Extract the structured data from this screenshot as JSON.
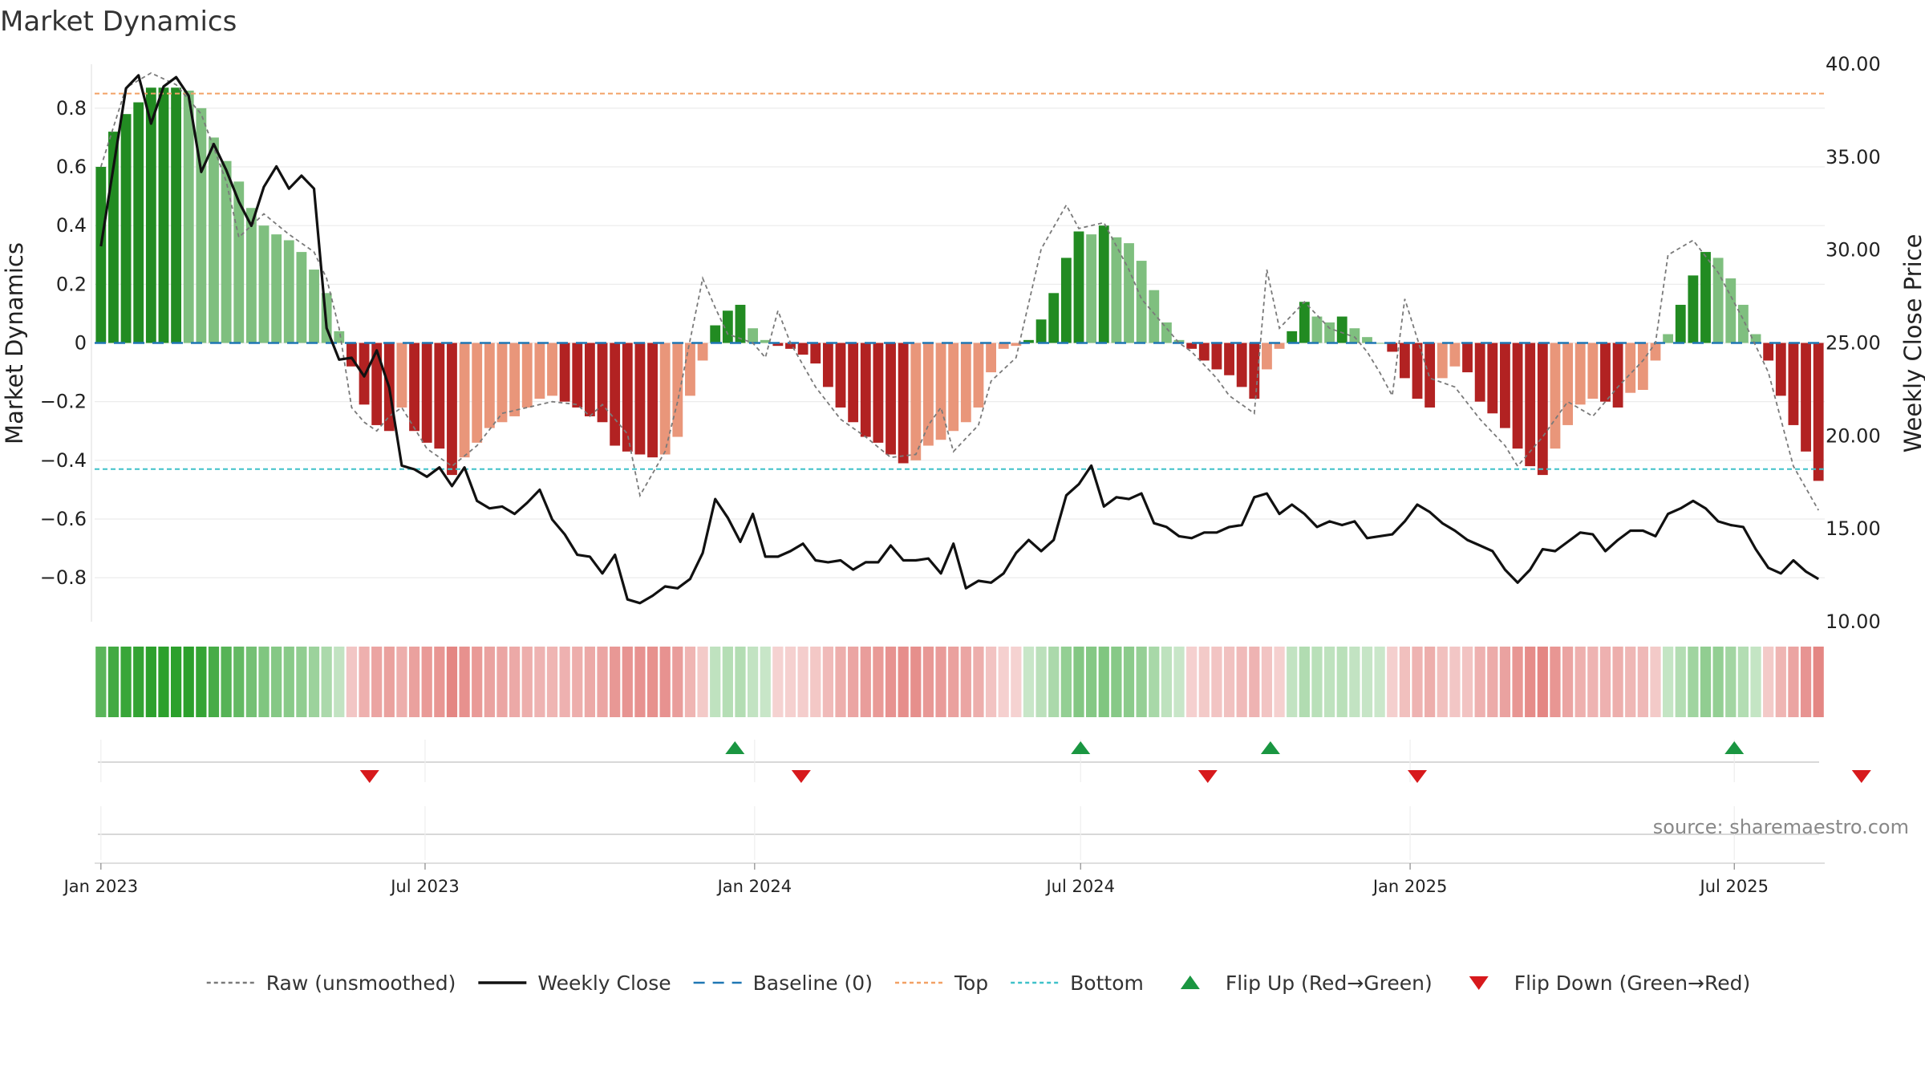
{
  "chart_data": {
    "type": "bar",
    "title": "Market Dynamics",
    "ylabel": "Market Dynamics",
    "y2label": "Weekly Close Price",
    "ylim": [
      -0.95,
      0.95
    ],
    "y2lim": [
      10,
      40
    ],
    "yticks": [
      0.8,
      0.6,
      0.4,
      0.2,
      0,
      -0.2,
      -0.4,
      -0.6,
      -0.8
    ],
    "ytick_labels": [
      "0.8",
      "0.6",
      "0.4",
      "0.2",
      "0",
      "−0.2",
      "−0.4",
      "−0.6",
      "−0.8"
    ],
    "y2ticks": [
      40,
      35,
      30,
      25,
      20,
      15,
      10
    ],
    "y2tick_labels": [
      "40.00",
      "35.00",
      "30.00",
      "25.00",
      "20.00",
      "15.00",
      "10.00"
    ],
    "top_level": 0.85,
    "bottom_level": -0.43,
    "x_start": "2023-01-01",
    "x_ticks": [
      {
        "date": "2023-01-01",
        "label": "Jan 2023"
      },
      {
        "date": "2023-07-01",
        "label": "Jul 2023"
      },
      {
        "date": "2024-01-01",
        "label": "Jan 2024"
      },
      {
        "date": "2024-07-01",
        "label": "Jul 2024"
      },
      {
        "date": "2025-01-01",
        "label": "Jan 2025"
      },
      {
        "date": "2025-07-01",
        "label": "Jul 2025"
      }
    ],
    "strength_anchors": [
      [
        0,
        0.6
      ],
      [
        1,
        0.72
      ],
      [
        2,
        0.78
      ],
      [
        3,
        0.82
      ],
      [
        4,
        0.87
      ],
      [
        5,
        0.87
      ],
      [
        6,
        0.87
      ],
      [
        7,
        0.86
      ],
      [
        8,
        0.8
      ],
      [
        9,
        0.7
      ],
      [
        10,
        0.62
      ],
      [
        11,
        0.55
      ],
      [
        12,
        0.46
      ],
      [
        13,
        0.4
      ],
      [
        14,
        0.37
      ],
      [
        15,
        0.35
      ],
      [
        16,
        0.31
      ],
      [
        17,
        0.25
      ],
      [
        18,
        0.17
      ],
      [
        19,
        0.04
      ],
      [
        20,
        -0.08
      ],
      [
        21,
        -0.21
      ],
      [
        22,
        -0.28
      ],
      [
        23,
        -0.3
      ],
      [
        24,
        -0.22
      ],
      [
        25,
        -0.3
      ],
      [
        26,
        -0.34
      ],
      [
        27,
        -0.36
      ],
      [
        28,
        -0.45
      ],
      [
        29,
        -0.39
      ],
      [
        30,
        -0.34
      ],
      [
        31,
        -0.29
      ],
      [
        32,
        -0.27
      ],
      [
        33,
        -0.25
      ],
      [
        34,
        -0.22
      ],
      [
        35,
        -0.19
      ],
      [
        36,
        -0.18
      ],
      [
        37,
        -0.2
      ],
      [
        38,
        -0.22
      ],
      [
        39,
        -0.25
      ],
      [
        40,
        -0.27
      ],
      [
        41,
        -0.35
      ],
      [
        42,
        -0.37
      ],
      [
        43,
        -0.38
      ],
      [
        44,
        -0.39
      ],
      [
        45,
        -0.38
      ],
      [
        46,
        -0.32
      ],
      [
        47,
        -0.18
      ],
      [
        48,
        -0.06
      ],
      [
        49,
        0.06
      ],
      [
        50,
        0.11
      ],
      [
        51,
        0.13
      ],
      [
        52,
        0.05
      ],
      [
        53,
        0.01
      ],
      [
        54,
        -0.01
      ],
      [
        55,
        -0.02
      ],
      [
        56,
        -0.04
      ],
      [
        57,
        -0.07
      ],
      [
        58,
        -0.15
      ],
      [
        59,
        -0.22
      ],
      [
        60,
        -0.27
      ],
      [
        61,
        -0.32
      ],
      [
        62,
        -0.34
      ],
      [
        63,
        -0.38
      ],
      [
        64,
        -0.41
      ],
      [
        65,
        -0.4
      ],
      [
        66,
        -0.35
      ],
      [
        67,
        -0.33
      ],
      [
        68,
        -0.3
      ],
      [
        69,
        -0.27
      ],
      [
        70,
        -0.22
      ],
      [
        71,
        -0.1
      ],
      [
        72,
        -0.02
      ],
      [
        73,
        -0.01
      ],
      [
        74,
        0.01
      ],
      [
        75,
        0.08
      ],
      [
        76,
        0.17
      ],
      [
        77,
        0.29
      ],
      [
        78,
        0.38
      ],
      [
        79,
        0.37
      ],
      [
        80,
        0.4
      ],
      [
        81,
        0.36
      ],
      [
        82,
        0.34
      ],
      [
        83,
        0.28
      ],
      [
        84,
        0.18
      ],
      [
        85,
        0.07
      ],
      [
        86,
        0.01
      ],
      [
        87,
        -0.02
      ],
      [
        88,
        -0.06
      ],
      [
        89,
        -0.09
      ],
      [
        90,
        -0.11
      ],
      [
        91,
        -0.15
      ],
      [
        92,
        -0.19
      ],
      [
        93,
        -0.09
      ],
      [
        94,
        -0.02
      ],
      [
        95,
        0.04
      ],
      [
        96,
        0.14
      ],
      [
        97,
        0.09
      ],
      [
        98,
        0.07
      ],
      [
        99,
        0.09
      ],
      [
        100,
        0.05
      ],
      [
        101,
        0.02
      ],
      [
        102,
        0.0
      ],
      [
        103,
        -0.03
      ],
      [
        104,
        -0.12
      ],
      [
        105,
        -0.19
      ],
      [
        106,
        -0.22
      ],
      [
        107,
        -0.12
      ],
      [
        108,
        -0.08
      ],
      [
        109,
        -0.1
      ],
      [
        110,
        -0.2
      ],
      [
        111,
        -0.24
      ],
      [
        112,
        -0.29
      ],
      [
        113,
        -0.36
      ],
      [
        114,
        -0.42
      ],
      [
        115,
        -0.45
      ],
      [
        116,
        -0.36
      ],
      [
        117,
        -0.28
      ],
      [
        118,
        -0.21
      ],
      [
        119,
        -0.19
      ],
      [
        120,
        -0.2
      ],
      [
        121,
        -0.22
      ],
      [
        122,
        -0.17
      ],
      [
        123,
        -0.16
      ],
      [
        124,
        -0.06
      ],
      [
        125,
        0.03
      ],
      [
        126,
        0.13
      ],
      [
        127,
        0.23
      ],
      [
        128,
        0.31
      ],
      [
        129,
        0.29
      ],
      [
        130,
        0.22
      ],
      [
        131,
        0.13
      ],
      [
        132,
        0.03
      ],
      [
        133,
        -0.06
      ],
      [
        134,
        -0.18
      ],
      [
        135,
        -0.28
      ],
      [
        136,
        -0.37
      ],
      [
        137,
        -0.47
      ]
    ],
    "raw_anchors": [
      [
        0,
        0.6
      ],
      [
        2,
        0.87
      ],
      [
        4,
        0.92
      ],
      [
        6,
        0.88
      ],
      [
        8,
        0.78
      ],
      [
        10,
        0.55
      ],
      [
        11,
        0.36
      ],
      [
        13,
        0.44
      ],
      [
        15,
        0.37
      ],
      [
        17,
        0.31
      ],
      [
        18,
        0.22
      ],
      [
        19,
        0.05
      ],
      [
        20,
        -0.22
      ],
      [
        21,
        -0.27
      ],
      [
        22,
        -0.3
      ],
      [
        23,
        -0.25
      ],
      [
        24,
        -0.22
      ],
      [
        25,
        -0.29
      ],
      [
        26,
        -0.36
      ],
      [
        28,
        -0.42
      ],
      [
        30,
        -0.35
      ],
      [
        32,
        -0.24
      ],
      [
        34,
        -0.22
      ],
      [
        36,
        -0.2
      ],
      [
        38,
        -0.21
      ],
      [
        39,
        -0.25
      ],
      [
        40,
        -0.21
      ],
      [
        42,
        -0.31
      ],
      [
        43,
        -0.52
      ],
      [
        45,
        -0.37
      ],
      [
        46,
        -0.2
      ],
      [
        48,
        0.22
      ],
      [
        49,
        0.12
      ],
      [
        50,
        0.03
      ],
      [
        52,
        0.0
      ],
      [
        53,
        -0.05
      ],
      [
        54,
        0.11
      ],
      [
        55,
        0.0
      ],
      [
        57,
        -0.15
      ],
      [
        59,
        -0.26
      ],
      [
        61,
        -0.32
      ],
      [
        63,
        -0.39
      ],
      [
        65,
        -0.38
      ],
      [
        66,
        -0.28
      ],
      [
        67,
        -0.22
      ],
      [
        68,
        -0.37
      ],
      [
        70,
        -0.28
      ],
      [
        71,
        -0.13
      ],
      [
        73,
        -0.05
      ],
      [
        75,
        0.32
      ],
      [
        77,
        0.47
      ],
      [
        78,
        0.39
      ],
      [
        80,
        0.41
      ],
      [
        82,
        0.25
      ],
      [
        83,
        0.15
      ],
      [
        84,
        0.1
      ],
      [
        86,
        0.0
      ],
      [
        87,
        -0.03
      ],
      [
        89,
        -0.12
      ],
      [
        90,
        -0.18
      ],
      [
        92,
        -0.24
      ],
      [
        93,
        0.25
      ],
      [
        94,
        0.05
      ],
      [
        96,
        0.14
      ],
      [
        98,
        0.05
      ],
      [
        100,
        0.02
      ],
      [
        101,
        -0.03
      ],
      [
        102,
        -0.1
      ],
      [
        103,
        -0.18
      ],
      [
        104,
        0.15
      ],
      [
        106,
        -0.12
      ],
      [
        108,
        -0.15
      ],
      [
        110,
        -0.26
      ],
      [
        112,
        -0.35
      ],
      [
        113,
        -0.42
      ],
      [
        115,
        -0.32
      ],
      [
        117,
        -0.2
      ],
      [
        119,
        -0.25
      ],
      [
        121,
        -0.15
      ],
      [
        123,
        -0.06
      ],
      [
        124,
        0.0
      ],
      [
        125,
        0.3
      ],
      [
        127,
        0.35
      ],
      [
        129,
        0.24
      ],
      [
        131,
        0.08
      ],
      [
        133,
        -0.1
      ],
      [
        135,
        -0.42
      ],
      [
        137,
        -0.57
      ]
    ],
    "close_anchors": [
      [
        0,
        30.2
      ],
      [
        2,
        38.7
      ],
      [
        3,
        39.4
      ],
      [
        4,
        36.8
      ],
      [
        5,
        38.8
      ],
      [
        6,
        39.3
      ],
      [
        7,
        38.3
      ],
      [
        8,
        34.2
      ],
      [
        9,
        35.7
      ],
      [
        10,
        34.3
      ],
      [
        11,
        32.6
      ],
      [
        12,
        31.3
      ],
      [
        13,
        33.4
      ],
      [
        14,
        34.5
      ],
      [
        15,
        33.3
      ],
      [
        16,
        34.0
      ],
      [
        17,
        33.3
      ],
      [
        18,
        25.8
      ],
      [
        19,
        24.1
      ],
      [
        20,
        24.2
      ],
      [
        21,
        23.2
      ],
      [
        22,
        24.6
      ],
      [
        23,
        22.6
      ],
      [
        24,
        18.4
      ],
      [
        25,
        18.2
      ],
      [
        26,
        17.8
      ],
      [
        27,
        18.3
      ],
      [
        28,
        17.3
      ],
      [
        29,
        18.3
      ],
      [
        30,
        16.5
      ],
      [
        31,
        16.1
      ],
      [
        32,
        16.2
      ],
      [
        33,
        15.8
      ],
      [
        34,
        16.4
      ],
      [
        35,
        17.1
      ],
      [
        36,
        15.5
      ],
      [
        37,
        14.7
      ],
      [
        38,
        13.6
      ],
      [
        39,
        13.5
      ],
      [
        40,
        12.6
      ],
      [
        41,
        13.6
      ],
      [
        42,
        11.2
      ],
      [
        43,
        11.0
      ],
      [
        44,
        11.4
      ],
      [
        45,
        11.9
      ],
      [
        46,
        11.8
      ],
      [
        47,
        12.3
      ],
      [
        48,
        13.7
      ],
      [
        49,
        16.6
      ],
      [
        50,
        15.6
      ],
      [
        51,
        14.3
      ],
      [
        52,
        15.8
      ],
      [
        53,
        13.5
      ],
      [
        54,
        13.5
      ],
      [
        55,
        13.8
      ],
      [
        56,
        14.2
      ],
      [
        57,
        13.3
      ],
      [
        58,
        13.2
      ],
      [
        59,
        13.3
      ],
      [
        60,
        12.8
      ],
      [
        61,
        13.2
      ],
      [
        62,
        13.2
      ],
      [
        63,
        14.1
      ],
      [
        64,
        13.3
      ],
      [
        65,
        13.3
      ],
      [
        66,
        13.4
      ],
      [
        67,
        12.6
      ],
      [
        68,
        14.2
      ],
      [
        69,
        11.8
      ],
      [
        70,
        12.2
      ],
      [
        71,
        12.1
      ],
      [
        72,
        12.6
      ],
      [
        73,
        13.7
      ],
      [
        74,
        14.4
      ],
      [
        75,
        13.8
      ],
      [
        76,
        14.4
      ],
      [
        77,
        16.8
      ],
      [
        78,
        17.4
      ],
      [
        79,
        18.4
      ],
      [
        80,
        16.2
      ],
      [
        81,
        16.7
      ],
      [
        82,
        16.6
      ],
      [
        83,
        16.9
      ],
      [
        84,
        15.3
      ],
      [
        85,
        15.1
      ],
      [
        86,
        14.6
      ],
      [
        87,
        14.5
      ],
      [
        88,
        14.8
      ],
      [
        89,
        14.8
      ],
      [
        90,
        15.1
      ],
      [
        91,
        15.2
      ],
      [
        92,
        16.7
      ],
      [
        93,
        16.9
      ],
      [
        94,
        15.8
      ],
      [
        95,
        16.3
      ],
      [
        96,
        15.8
      ],
      [
        97,
        15.1
      ],
      [
        98,
        15.4
      ],
      [
        99,
        15.2
      ],
      [
        100,
        15.4
      ],
      [
        101,
        14.5
      ],
      [
        102,
        14.6
      ],
      [
        103,
        14.7
      ],
      [
        104,
        15.4
      ],
      [
        105,
        16.3
      ],
      [
        106,
        15.9
      ],
      [
        107,
        15.3
      ],
      [
        108,
        14.9
      ],
      [
        109,
        14.4
      ],
      [
        110,
        14.1
      ],
      [
        111,
        13.8
      ],
      [
        112,
        12.8
      ],
      [
        113,
        12.1
      ],
      [
        114,
        12.8
      ],
      [
        115,
        13.9
      ],
      [
        116,
        13.8
      ],
      [
        117,
        14.3
      ],
      [
        118,
        14.8
      ],
      [
        119,
        14.7
      ],
      [
        120,
        13.8
      ],
      [
        121,
        14.4
      ],
      [
        122,
        14.9
      ],
      [
        123,
        14.9
      ],
      [
        124,
        14.6
      ],
      [
        125,
        15.8
      ],
      [
        126,
        16.1
      ],
      [
        127,
        16.5
      ],
      [
        128,
        16.1
      ],
      [
        129,
        15.4
      ],
      [
        130,
        15.2
      ],
      [
        131,
        15.1
      ],
      [
        132,
        13.9
      ],
      [
        133,
        12.9
      ],
      [
        134,
        12.6
      ],
      [
        135,
        13.3
      ],
      [
        136,
        12.7
      ],
      [
        137,
        12.3
      ]
    ],
    "regime_bands": [
      {
        "from": 0,
        "to": 19,
        "state": "bull-fading"
      },
      {
        "from": 20,
        "to": 48,
        "state": "bear"
      },
      {
        "from": 49,
        "to": 73,
        "state": "mixed-bear"
      },
      {
        "from": 74,
        "to": 86,
        "state": "bull"
      },
      {
        "from": 87,
        "to": 94,
        "state": "bear-light"
      },
      {
        "from": 95,
        "to": 101,
        "state": "bull-light"
      },
      {
        "from": 102,
        "to": 124,
        "state": "bear"
      },
      {
        "from": 125,
        "to": 131,
        "state": "bull"
      },
      {
        "from": 132,
        "to": 137,
        "state": "bear"
      }
    ],
    "flips_up": [
      {
        "date": "2023-12-21"
      },
      {
        "date": "2024-07-01"
      },
      {
        "date": "2024-10-15"
      },
      {
        "date": "2025-07-01"
      }
    ],
    "flips_down": [
      {
        "date": "2023-05-31"
      },
      {
        "date": "2024-01-27"
      },
      {
        "date": "2024-09-10"
      },
      {
        "date": "2025-01-05"
      },
      {
        "date": "2025-09-10"
      }
    ],
    "legend": [
      {
        "label": "Raw (unsmoothed)",
        "kind": "dotted",
        "color": "#7a7a7a"
      },
      {
        "label": "Weekly Close",
        "kind": "solid",
        "color": "#111111"
      },
      {
        "label": "Baseline (0)",
        "kind": "dashed",
        "color": "#1f77b4"
      },
      {
        "label": "Top",
        "kind": "dotted",
        "color": "#f2a165"
      },
      {
        "label": "Bottom",
        "kind": "dotted",
        "color": "#3fc1c9"
      },
      {
        "label": "Flip Up (Red→Green)",
        "kind": "triangle-up",
        "color": "#1a9641"
      },
      {
        "label": "Flip Down (Green→Red)",
        "kind": "triangle-down",
        "color": "#d7191c"
      }
    ],
    "source": "source: sharemaestro.com",
    "colors": {
      "strong_up": "#228B22",
      "weak_up": "#7fbf7f",
      "strong_down": "#b22222",
      "weak_down": "#e9967a",
      "band_green": "#2ca02c",
      "band_red": "#d9534f"
    }
  }
}
